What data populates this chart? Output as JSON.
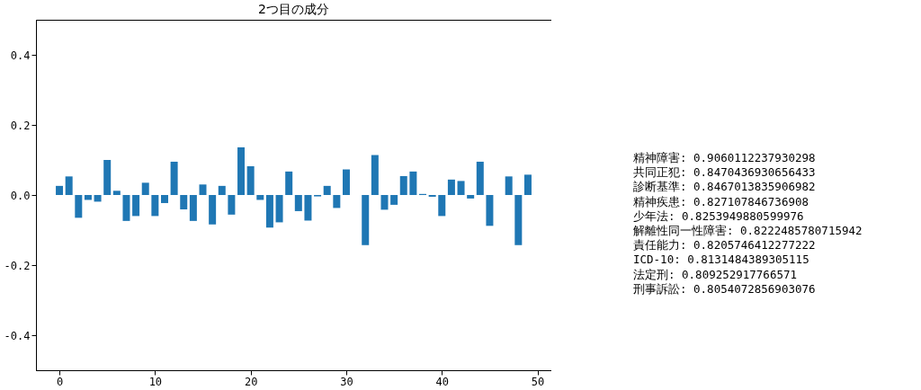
{
  "chart_data": {
    "type": "bar",
    "title": "2つ目の成分",
    "x": [
      0,
      1,
      2,
      3,
      4,
      5,
      6,
      7,
      8,
      9,
      10,
      11,
      12,
      13,
      14,
      15,
      16,
      17,
      18,
      19,
      20,
      21,
      22,
      23,
      24,
      25,
      26,
      27,
      28,
      29,
      30,
      31,
      32,
      33,
      34,
      35,
      36,
      37,
      38,
      39,
      40,
      41,
      42,
      43,
      44,
      45,
      46,
      47,
      48,
      49
    ],
    "values": [
      0.026,
      0.053,
      -0.065,
      -0.014,
      -0.019,
      0.1,
      0.012,
      -0.074,
      -0.06,
      0.035,
      -0.06,
      -0.023,
      0.095,
      -0.041,
      -0.074,
      0.03,
      -0.084,
      0.026,
      -0.056,
      0.136,
      0.082,
      -0.014,
      -0.093,
      -0.078,
      0.067,
      -0.046,
      -0.073,
      -0.004,
      0.026,
      -0.037,
      0.073,
      0,
      -0.143,
      0.114,
      -0.042,
      -0.028,
      0.054,
      0.067,
      0.003,
      -0.005,
      -0.06,
      0.044,
      0.04,
      -0.01,
      0.095,
      -0.088,
      0,
      0.053,
      -0.143,
      0.058
    ],
    "color": "#1f77b4",
    "xlim": [
      -2.45,
      51.45
    ],
    "xticks": [
      0,
      10,
      20,
      30,
      40,
      50
    ],
    "ylim": [
      -0.5,
      0.5
    ],
    "yticks": [
      {
        "value": -0.4,
        "label": "-0.4"
      },
      {
        "value": -0.2,
        "label": "-0.2"
      },
      {
        "value": 0,
        "label": "0.0"
      },
      {
        "value": 0.2,
        "label": "0.2"
      },
      {
        "value": 0.4,
        "label": "0.4"
      }
    ],
    "grid": false,
    "annotations": [
      "精神障害: 0.9060112237930298",
      "共同正犯: 0.8470436930656433",
      "診断基準: 0.8467013835906982",
      "精神疾患: 0.827107846736908",
      "少年法: 0.8253949880599976",
      "解離性同一性障害: 0.8222485780715942",
      "責任能力: 0.8205746412277222",
      "ICD-10: 0.8131484389305115",
      "法定刑: 0.809252917766571",
      "刑事訴訟: 0.8054072856903076"
    ]
  }
}
